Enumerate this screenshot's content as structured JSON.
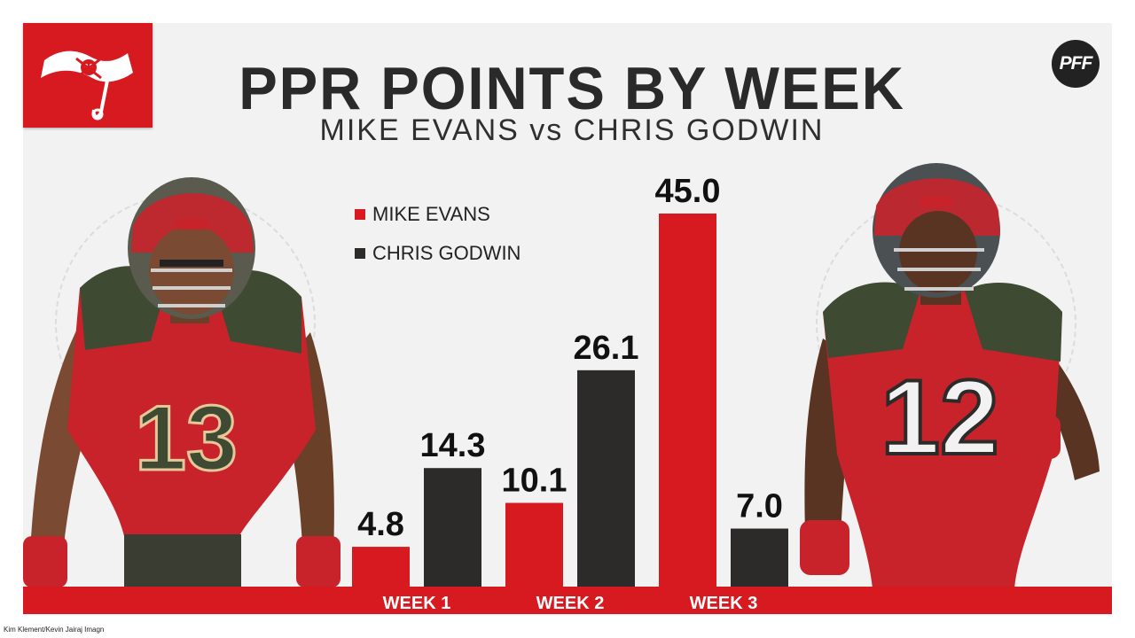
{
  "header": {
    "title": "PPR POINTS BY WEEK",
    "subtitle": "MIKE EVANS vs CHRIS GODWIN",
    "brand": "PFF"
  },
  "photo_credit": "Kim Klement/Kevin Jairaj Imagn",
  "colors": {
    "mike_evans": "#d71920",
    "chris_godwin": "#2d2b29",
    "baseline": "#d71920",
    "background": "#f2f2f2"
  },
  "players": {
    "left": {
      "jersey_number": "13"
    },
    "right": {
      "jersey_number": "12"
    }
  },
  "chart_data": {
    "type": "bar",
    "title": "PPR POINTS BY WEEK",
    "subtitle": "MIKE EVANS vs CHRIS GODWIN",
    "categories": [
      "WEEK 1",
      "WEEK 2",
      "WEEK 3"
    ],
    "series": [
      {
        "name": "MIKE EVANS",
        "values": [
          4.8,
          10.1,
          45.0
        ],
        "color": "#d71920"
      },
      {
        "name": "CHRIS GODWIN",
        "values": [
          14.3,
          26.1,
          7.0
        ],
        "color": "#2d2b29"
      }
    ],
    "data_labels": [
      [
        "4.8",
        "10.1",
        "45.0"
      ],
      [
        "14.3",
        "26.1",
        "7.0"
      ]
    ],
    "ylim": [
      0,
      45
    ],
    "grid": false,
    "legend": "top-left"
  }
}
